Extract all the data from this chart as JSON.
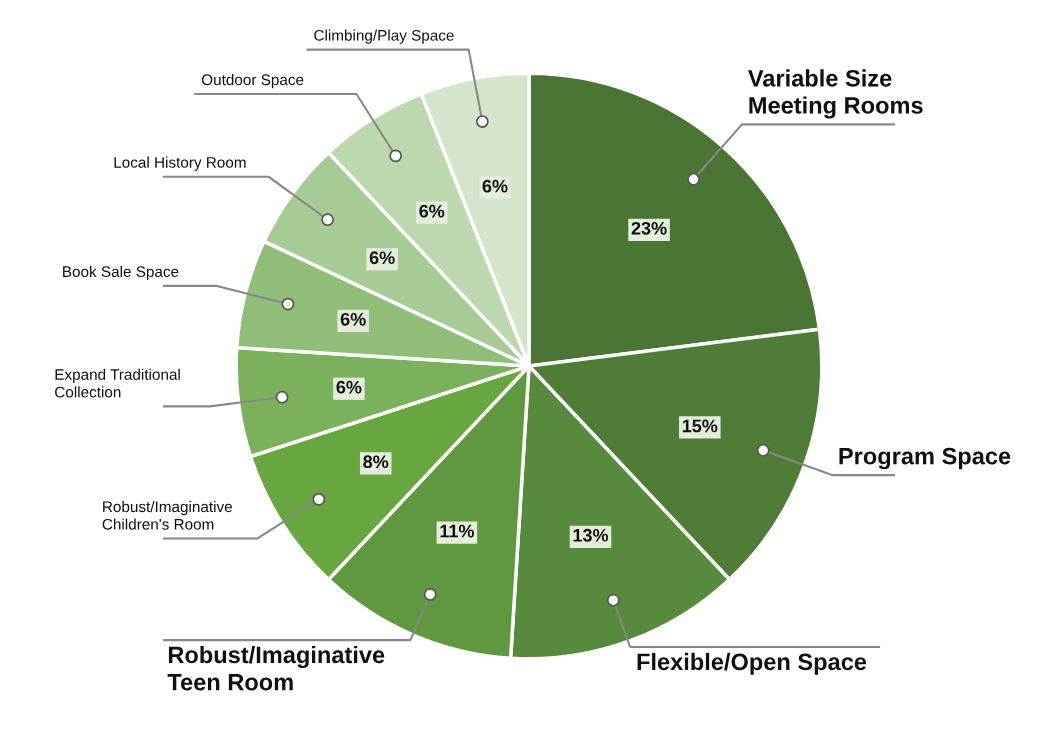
{
  "chart_data": {
    "type": "pie",
    "categories": [
      "Variable Size\nMeeting Rooms",
      "Program Space",
      "Flexible/Open Space",
      "Robust/Imaginative\nTeen Room",
      "Robust/Imaginative\nChildren's Room",
      "Expand Traditional\nCollection",
      "Book Sale Space",
      "Local History Room",
      "Outdoor Space",
      "Climbing/Play Space"
    ],
    "values": [
      23,
      15,
      13,
      11,
      8,
      6,
      6,
      6,
      6,
      6
    ],
    "value_labels": [
      "23%",
      "15%",
      "13%",
      "11%",
      "8%",
      "6%",
      "6%",
      "6%",
      "6%",
      "6%"
    ],
    "colors": [
      "#4b7535",
      "#4f7d37",
      "#578a3c",
      "#5f983e",
      "#68a63f",
      "#7bb15c",
      "#90bd78",
      "#a7cb95",
      "#bdd7ae",
      "#d4e5cb"
    ]
  }
}
